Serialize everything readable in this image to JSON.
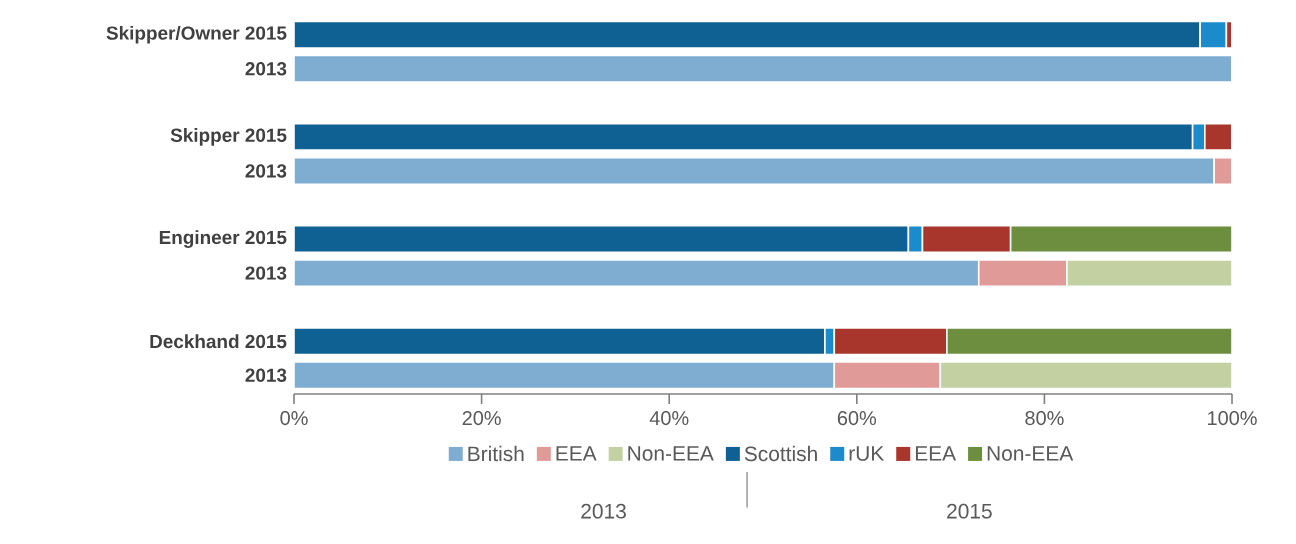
{
  "chart_data": {
    "type": "bar",
    "orientation": "horizontal",
    "stacked": true,
    "categories": [
      "Skipper/Owner  2015",
      "2013",
      "Skipper  2015",
      "2013",
      "Engineer  2015",
      "2013",
      "Deckhand  2015",
      "2013"
    ],
    "series": [
      {
        "name": "British",
        "color": "#7fadd2",
        "values": [
          null,
          100,
          null,
          98.1,
          null,
          73.0,
          null,
          57.6
        ]
      },
      {
        "name": "EEA",
        "color": "#e09a98",
        "values": [
          null,
          0,
          null,
          1.9,
          null,
          9.4,
          null,
          11.3
        ]
      },
      {
        "name": "Non-EEA",
        "color": "#c3d1a2",
        "values": [
          null,
          0,
          null,
          0,
          null,
          17.6,
          null,
          31.1
        ]
      },
      {
        "name": "Scottish",
        "color": "#0f6193",
        "values": [
          96.6,
          null,
          95.8,
          null,
          65.5,
          null,
          56.6,
          null
        ]
      },
      {
        "name": "rUK",
        "color": "#1b8bcb",
        "values": [
          2.8,
          null,
          1.3,
          null,
          1.5,
          null,
          1.0,
          null
        ]
      },
      {
        "name": "EEA",
        "color": "#a8362c",
        "values": [
          0.6,
          null,
          2.9,
          null,
          9.4,
          null,
          12.0,
          null
        ]
      },
      {
        "name": "Non-EEA",
        "color": "#6d8e3e",
        "values": [
          0,
          null,
          0,
          null,
          23.6,
          null,
          30.4,
          null
        ]
      }
    ],
    "xlim": [
      0,
      100
    ],
    "xticks": [
      {
        "value": 0,
        "label": "0%"
      },
      {
        "value": 20,
        "label": "20%"
      },
      {
        "value": 40,
        "label": "40%"
      },
      {
        "value": 60,
        "label": "60%"
      },
      {
        "value": 80,
        "label": "80%"
      },
      {
        "value": 100,
        "label": "100%"
      }
    ],
    "legend": "bottom",
    "annotations": [
      "2013",
      "2015"
    ]
  }
}
